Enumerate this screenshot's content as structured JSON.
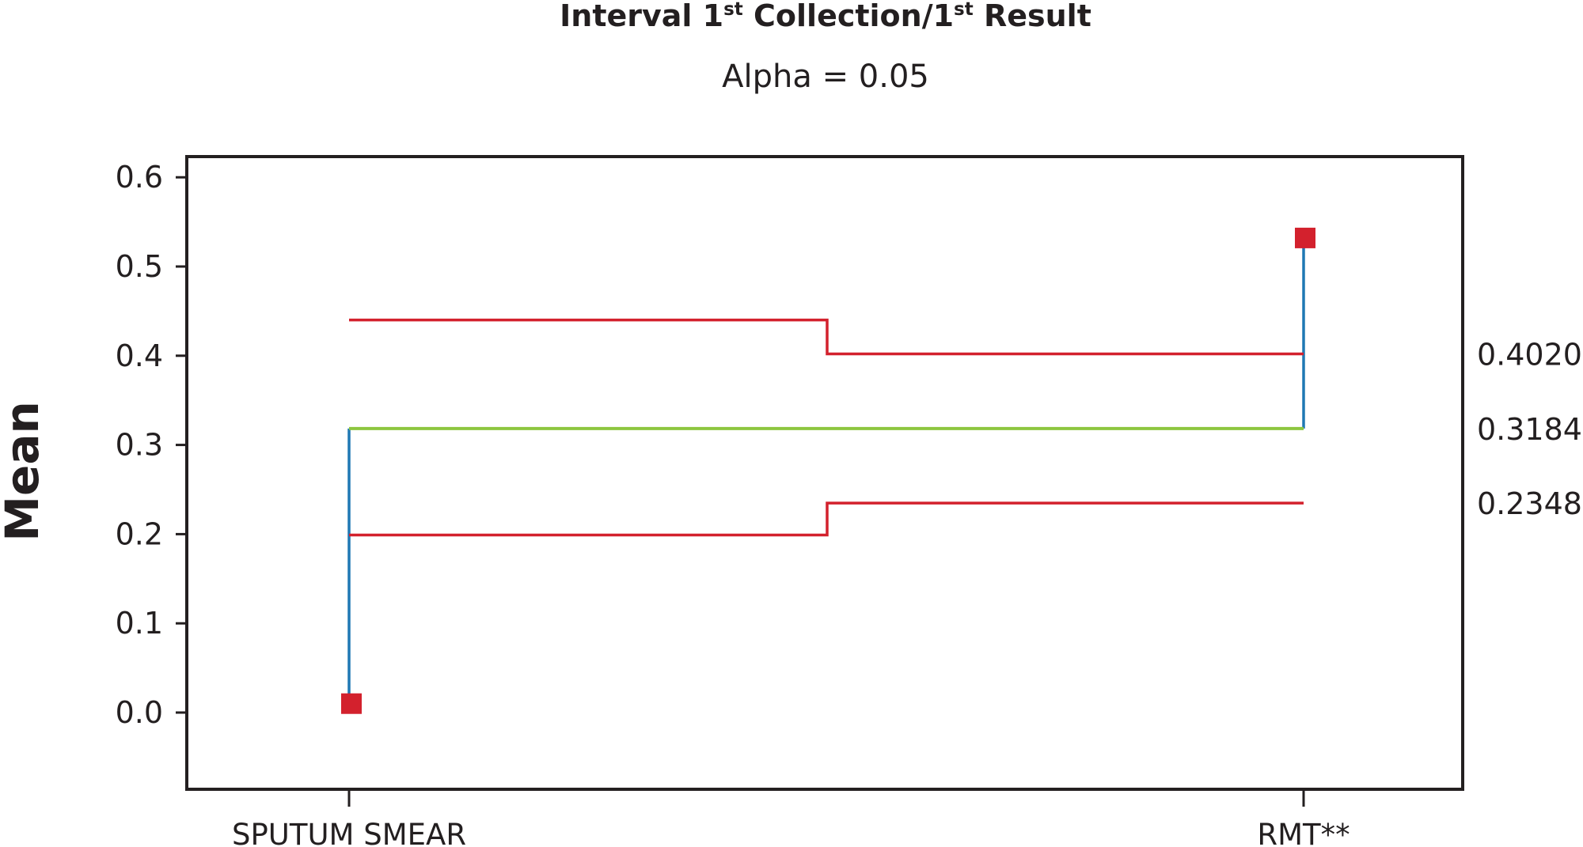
{
  "chart_data": {
    "type": "line",
    "title": {
      "part1": "Interval 1",
      "sup1": "st",
      "part2": " Collection/1",
      "sup2": "st",
      "part3": " Result"
    },
    "subtitle": "Alpha = 0.05",
    "ylabel": "Mean",
    "xlabel": "",
    "ylim": [
      -0.085,
      0.62
    ],
    "yticks": [
      "0.0",
      "0.1",
      "0.2",
      "0.3",
      "0.4",
      "0.5",
      "0.6"
    ],
    "ytick_values": [
      0.0,
      0.1,
      0.2,
      0.3,
      0.4,
      0.5,
      0.6
    ],
    "categories": [
      "SPUTUM SMEAR",
      "RMT**"
    ],
    "points": [
      {
        "category": "SPUTUM SMEAR",
        "value": 0.01
      },
      {
        "category": "RMT**",
        "value": 0.532
      }
    ],
    "center_line": 0.3184,
    "decision_limits": {
      "upper": [
        0.44,
        0.402
      ],
      "lower": [
        0.199,
        0.2348
      ]
    },
    "reference_labels": [
      "0.4020",
      "0.3184",
      "0.2348"
    ],
    "reference_values": [
      0.402,
      0.3184,
      0.2348
    ],
    "grid": false,
    "colors": {
      "point": "#d3212d",
      "limit": "#d3212d",
      "center": "#8dc63f",
      "stem": "#1f78b4",
      "frame": "#231f20"
    }
  }
}
